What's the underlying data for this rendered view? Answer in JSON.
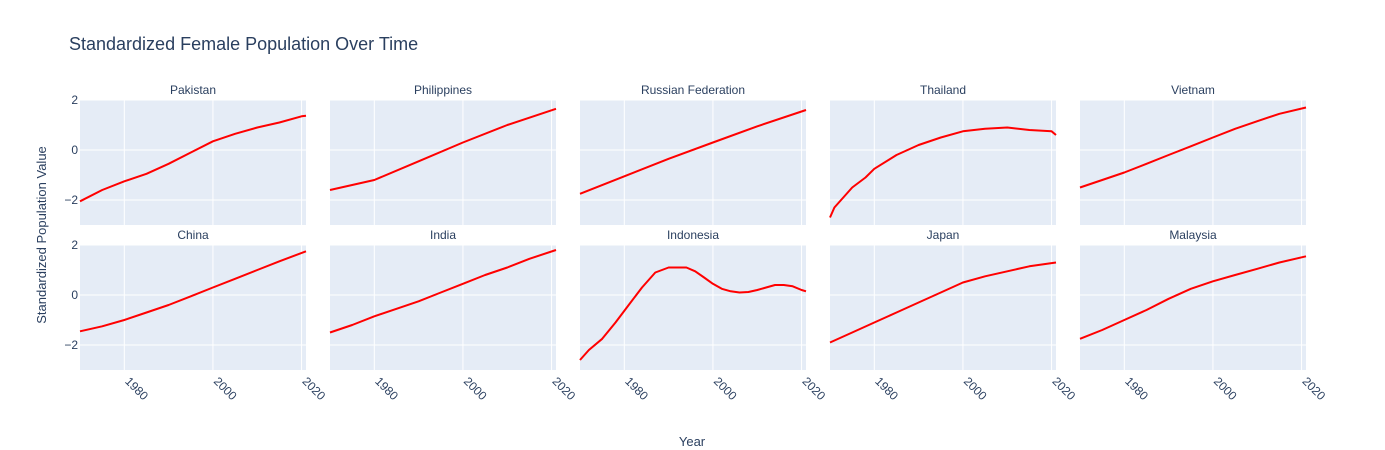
{
  "chart_data": {
    "type": "line",
    "title": "Standardized Female Population Over Time",
    "xlabel": "Year",
    "ylabel": "Standardized Population Value",
    "xlim": [
      1970,
      2021
    ],
    "ylim": [
      -3,
      2
    ],
    "xticks": [
      1980,
      2000,
      2020
    ],
    "yticks": [
      -2,
      0,
      2
    ],
    "grid": true,
    "line_color": "#ff0000",
    "panel_bg": "#e5ecf6",
    "facets": [
      {
        "name": "Pakistan",
        "x": [
          1970,
          1975,
          1980,
          1985,
          1990,
          1995,
          2000,
          2005,
          2010,
          2015,
          2020,
          2021
        ],
        "y": [
          -2.05,
          -1.6,
          -1.25,
          -0.95,
          -0.55,
          -0.1,
          0.35,
          0.65,
          0.9,
          1.1,
          1.35,
          1.37
        ]
      },
      {
        "name": "Philippines",
        "x": [
          1970,
          1980,
          1990,
          2000,
          2010,
          2021
        ],
        "y": [
          -1.6,
          -1.2,
          -0.45,
          0.3,
          1.0,
          1.65
        ]
      },
      {
        "name": "Russian Federation",
        "x": [
          1970,
          1980,
          1990,
          2000,
          2010,
          2021
        ],
        "y": [
          -1.75,
          -1.05,
          -0.35,
          0.3,
          0.95,
          1.6
        ]
      },
      {
        "name": "Thailand",
        "x": [
          1970,
          1971,
          1973,
          1975,
          1978,
          1980,
          1985,
          1990,
          1995,
          2000,
          2005,
          2010,
          2015,
          2020,
          2021
        ],
        "y": [
          -2.7,
          -2.3,
          -1.9,
          -1.5,
          -1.1,
          -0.75,
          -0.2,
          0.2,
          0.5,
          0.75,
          0.85,
          0.9,
          0.8,
          0.75,
          0.6
        ]
      },
      {
        "name": "Vietnam",
        "x": [
          1970,
          1975,
          1980,
          1985,
          1990,
          1995,
          2000,
          2005,
          2010,
          2015,
          2021
        ],
        "y": [
          -1.5,
          -1.2,
          -0.9,
          -0.55,
          -0.2,
          0.15,
          0.5,
          0.85,
          1.15,
          1.45,
          1.7
        ]
      },
      {
        "name": "China",
        "x": [
          1970,
          1975,
          1980,
          1985,
          1990,
          1995,
          2000,
          2005,
          2010,
          2015,
          2021
        ],
        "y": [
          -1.45,
          -1.25,
          -1.0,
          -0.7,
          -0.4,
          -0.05,
          0.3,
          0.65,
          1.0,
          1.35,
          1.75
        ]
      },
      {
        "name": "India",
        "x": [
          1970,
          1975,
          1980,
          1985,
          1990,
          1995,
          2000,
          2005,
          2010,
          2015,
          2021
        ],
        "y": [
          -1.5,
          -1.2,
          -0.85,
          -0.55,
          -0.25,
          0.1,
          0.45,
          0.8,
          1.1,
          1.45,
          1.8
        ]
      },
      {
        "name": "Indonesia",
        "x": [
          1970,
          1972,
          1975,
          1978,
          1981,
          1984,
          1987,
          1990,
          1992,
          1994,
          1996,
          1998,
          2000,
          2002,
          2004,
          2006,
          2008,
          2010,
          2012,
          2014,
          2016,
          2018,
          2020,
          2021
        ],
        "y": [
          -2.6,
          -2.2,
          -1.75,
          -1.1,
          -0.4,
          0.3,
          0.9,
          1.1,
          1.1,
          1.1,
          0.95,
          0.7,
          0.45,
          0.25,
          0.15,
          0.1,
          0.12,
          0.2,
          0.3,
          0.4,
          0.4,
          0.35,
          0.2,
          0.15
        ]
      },
      {
        "name": "Japan",
        "x": [
          1970,
          1975,
          1980,
          1985,
          1990,
          1995,
          2000,
          2005,
          2010,
          2015,
          2021
        ],
        "y": [
          -1.9,
          -1.5,
          -1.1,
          -0.7,
          -0.3,
          0.1,
          0.5,
          0.75,
          0.95,
          1.15,
          1.3
        ]
      },
      {
        "name": "Malaysia",
        "x": [
          1970,
          1975,
          1980,
          1985,
          1990,
          1995,
          2000,
          2005,
          2010,
          2015,
          2021
        ],
        "y": [
          -1.75,
          -1.4,
          -1.0,
          -0.6,
          -0.15,
          0.25,
          0.55,
          0.8,
          1.05,
          1.3,
          1.55
        ]
      }
    ]
  }
}
